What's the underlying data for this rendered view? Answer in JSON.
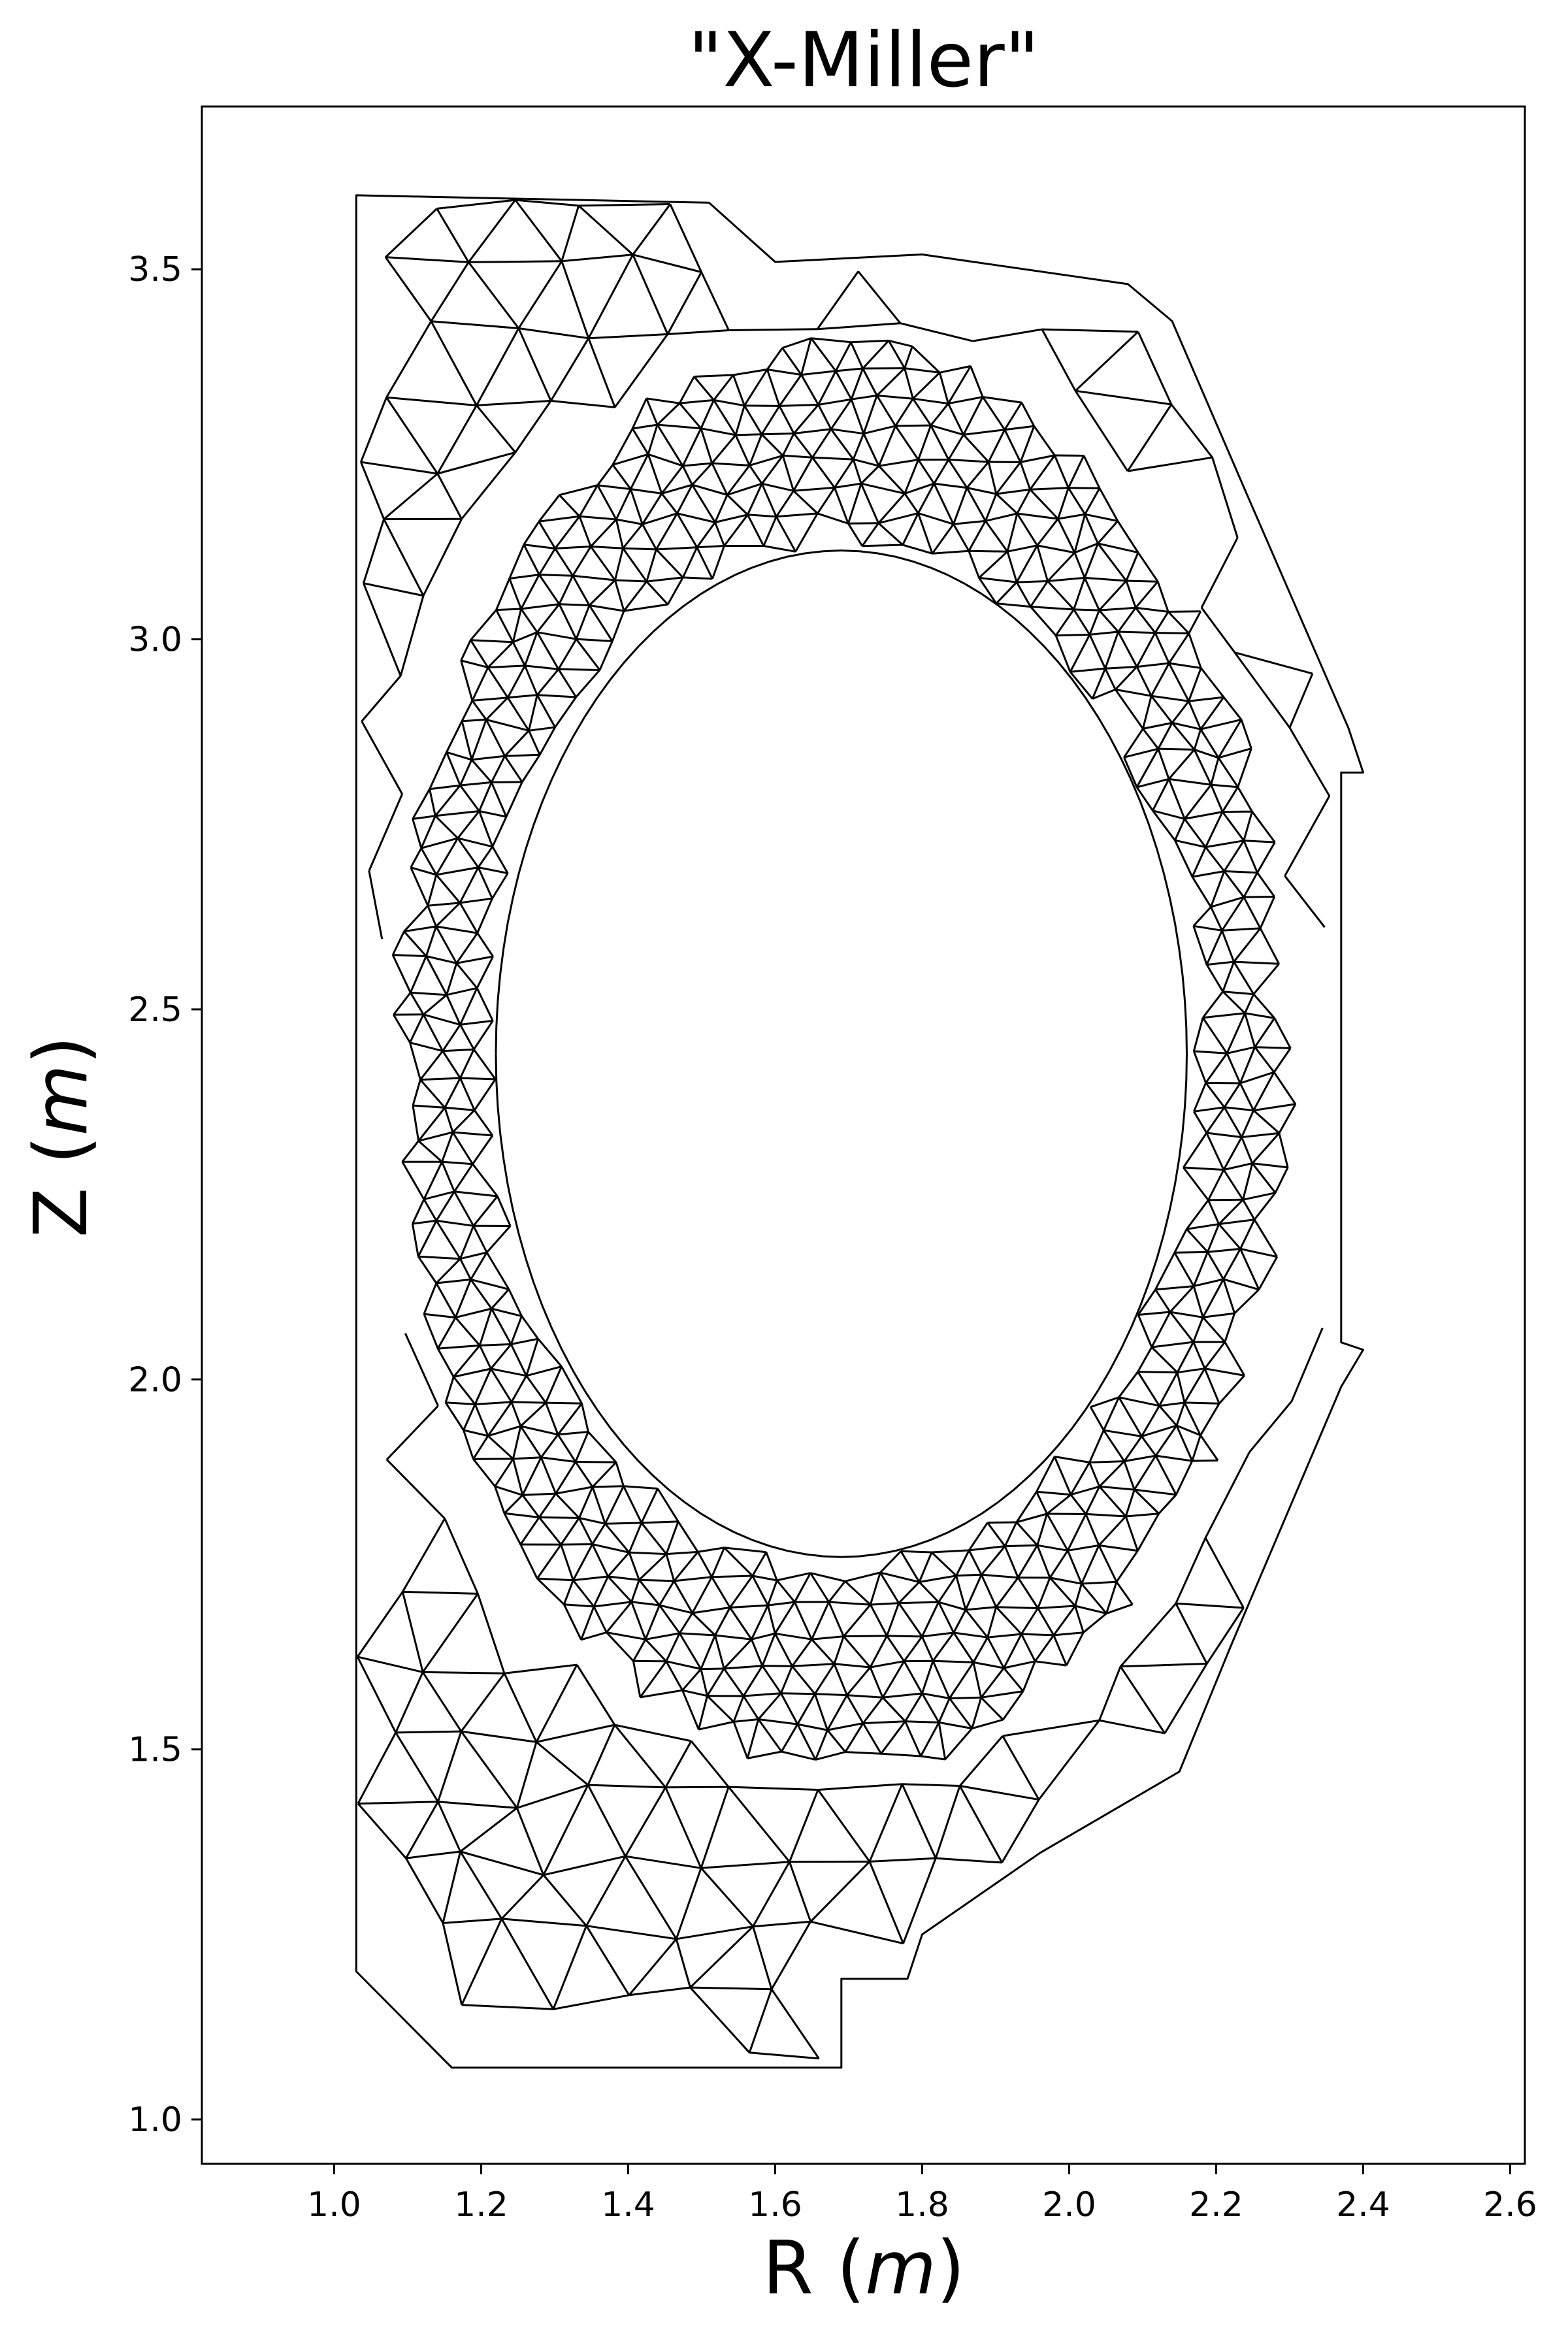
{
  "chart_data": {
    "type": "diagram",
    "title": "\"X-Miller\"",
    "xlabel_prefix": "R (",
    "xlabel_var": "m",
    "xlabel_suffix": ")",
    "ylabel_prefix": "Z (",
    "ylabel_var": "m",
    "ylabel_suffix": ")",
    "xlim": [
      0.82,
      2.62
    ],
    "ylim": [
      0.94,
      3.72
    ],
    "xticks": [
      {
        "value": 1.0,
        "label": "1.0"
      },
      {
        "value": 1.2,
        "label": "1.2"
      },
      {
        "value": 1.4,
        "label": "1.4"
      },
      {
        "value": 1.6,
        "label": "1.6"
      },
      {
        "value": 1.8,
        "label": "1.8"
      },
      {
        "value": 2.0,
        "label": "2.0"
      },
      {
        "value": 2.2,
        "label": "2.2"
      },
      {
        "value": 2.4,
        "label": "2.4"
      },
      {
        "value": 2.6,
        "label": "2.6"
      }
    ],
    "yticks": [
      {
        "value": 1.0,
        "label": "1.0"
      },
      {
        "value": 1.5,
        "label": "1.5"
      },
      {
        "value": 2.0,
        "label": "2.0"
      },
      {
        "value": 2.5,
        "label": "2.5"
      },
      {
        "value": 3.0,
        "label": "3.0"
      },
      {
        "value": 3.5,
        "label": "3.5"
      }
    ],
    "outer_boundary": [
      [
        1.03,
        3.6
      ],
      [
        1.51,
        3.59
      ],
      [
        1.6,
        3.51
      ],
      [
        1.8,
        3.52
      ],
      [
        2.08,
        3.48
      ],
      [
        2.14,
        3.43
      ],
      [
        2.24,
        3.2
      ],
      [
        2.38,
        2.88
      ],
      [
        2.4,
        2.82
      ],
      [
        2.37,
        2.82
      ],
      [
        2.37,
        2.05
      ],
      [
        2.4,
        2.04
      ],
      [
        2.37,
        1.99
      ],
      [
        2.22,
        1.64
      ],
      [
        2.15,
        1.47
      ],
      [
        1.96,
        1.36
      ],
      [
        1.8,
        1.25
      ],
      [
        1.78,
        1.19
      ],
      [
        1.69,
        1.19
      ],
      [
        1.69,
        1.07
      ],
      [
        1.16,
        1.07
      ],
      [
        1.09,
        1.14
      ],
      [
        1.03,
        1.2
      ],
      [
        1.03,
        3.6
      ]
    ],
    "plasma_region": {
      "inner_center": [
        1.69,
        2.44
      ],
      "inner_radii": [
        0.47,
        0.68
      ],
      "outer_center": [
        1.69,
        2.44
      ],
      "outer_radii": [
        0.62,
        0.98
      ],
      "mesh_density": "fine"
    }
  }
}
